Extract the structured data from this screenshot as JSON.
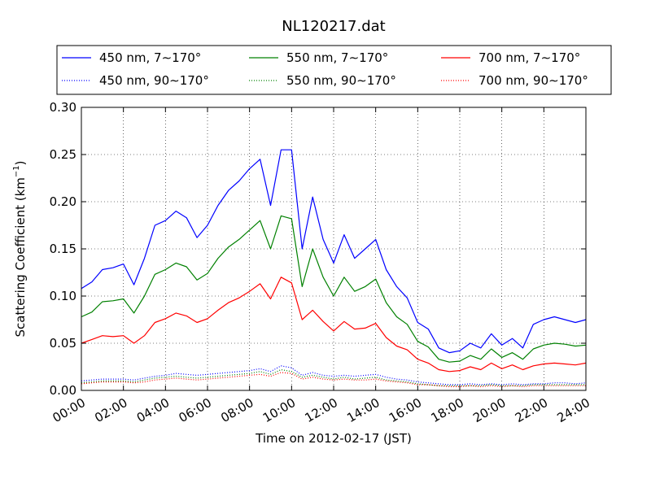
{
  "chart_data": {
    "type": "line",
    "title": "NL120217.dat",
    "xlabel": "Time on 2012-02-17 (JST)",
    "ylabel": "Scattering Coefficient (km",
    "ylabel_exp": "−1",
    "ylabel_close": ")",
    "xlim": [
      0,
      24
    ],
    "ylim": [
      0,
      0.3
    ],
    "grid": true,
    "legend_position": "top",
    "x_ticks": [
      {
        "v": 0,
        "label": "00:00"
      },
      {
        "v": 2,
        "label": "02:00"
      },
      {
        "v": 4,
        "label": "04:00"
      },
      {
        "v": 6,
        "label": "06:00"
      },
      {
        "v": 8,
        "label": "08:00"
      },
      {
        "v": 10,
        "label": "10:00"
      },
      {
        "v": 12,
        "label": "12:00"
      },
      {
        "v": 14,
        "label": "14:00"
      },
      {
        "v": 16,
        "label": "16:00"
      },
      {
        "v": 18,
        "label": "18:00"
      },
      {
        "v": 20,
        "label": "20:00"
      },
      {
        "v": 22,
        "label": "22:00"
      },
      {
        "v": 24,
        "label": "24:00"
      }
    ],
    "y_ticks": [
      {
        "v": 0.0,
        "label": "0.00"
      },
      {
        "v": 0.05,
        "label": "0.05"
      },
      {
        "v": 0.1,
        "label": "0.10"
      },
      {
        "v": 0.15,
        "label": "0.15"
      },
      {
        "v": 0.2,
        "label": "0.20"
      },
      {
        "v": 0.25,
        "label": "0.25"
      },
      {
        "v": 0.3,
        "label": "0.30"
      }
    ],
    "x": [
      0,
      0.5,
      1,
      1.5,
      2,
      2.5,
      3,
      3.5,
      4,
      4.5,
      5,
      5.5,
      6,
      6.5,
      7,
      7.5,
      8,
      8.5,
      9,
      9.5,
      10,
      10.5,
      11,
      11.5,
      12,
      12.5,
      13,
      13.5,
      14,
      14.5,
      15,
      15.5,
      16,
      16.5,
      17,
      17.5,
      18,
      18.5,
      19,
      19.5,
      20,
      20.5,
      21,
      21.5,
      22,
      22.5,
      23,
      23.5,
      24
    ],
    "series": [
      {
        "name": "450 nm, 7∼170°",
        "color": "#0000ff",
        "style": "solid",
        "values": [
          0.108,
          0.115,
          0.128,
          0.13,
          0.134,
          0.112,
          0.14,
          0.175,
          0.18,
          0.19,
          0.183,
          0.162,
          0.175,
          0.196,
          0.212,
          0.222,
          0.235,
          0.245,
          0.196,
          0.255,
          0.255,
          0.15,
          0.205,
          0.16,
          0.135,
          0.165,
          0.14,
          0.15,
          0.16,
          0.128,
          0.11,
          0.098,
          0.072,
          0.065,
          0.045,
          0.04,
          0.042,
          0.05,
          0.045,
          0.06,
          0.048,
          0.055,
          0.045,
          0.07,
          0.075,
          0.078,
          0.075,
          0.072,
          0.075
        ]
      },
      {
        "name": "550 nm, 7∼170°",
        "color": "#008000",
        "style": "solid",
        "values": [
          0.078,
          0.083,
          0.094,
          0.095,
          0.097,
          0.082,
          0.1,
          0.123,
          0.128,
          0.135,
          0.131,
          0.117,
          0.124,
          0.14,
          0.152,
          0.16,
          0.17,
          0.18,
          0.15,
          0.185,
          0.182,
          0.11,
          0.15,
          0.12,
          0.1,
          0.12,
          0.105,
          0.11,
          0.118,
          0.093,
          0.078,
          0.07,
          0.052,
          0.046,
          0.033,
          0.03,
          0.031,
          0.037,
          0.033,
          0.044,
          0.035,
          0.04,
          0.033,
          0.044,
          0.048,
          0.05,
          0.049,
          0.047,
          0.048
        ]
      },
      {
        "name": "700 nm, 7∼170°",
        "color": "#ff0000",
        "style": "solid",
        "values": [
          0.05,
          0.054,
          0.058,
          0.057,
          0.058,
          0.05,
          0.058,
          0.072,
          0.076,
          0.082,
          0.079,
          0.072,
          0.076,
          0.085,
          0.093,
          0.098,
          0.105,
          0.113,
          0.097,
          0.12,
          0.114,
          0.075,
          0.085,
          0.073,
          0.063,
          0.073,
          0.065,
          0.066,
          0.071,
          0.056,
          0.047,
          0.043,
          0.033,
          0.029,
          0.022,
          0.02,
          0.021,
          0.025,
          0.022,
          0.029,
          0.023,
          0.027,
          0.022,
          0.026,
          0.028,
          0.029,
          0.028,
          0.027,
          0.029
        ]
      },
      {
        "name": "450 nm, 90∼170°",
        "color": "#0000ff",
        "style": "dotted",
        "values": [
          0.01,
          0.011,
          0.012,
          0.012,
          0.012,
          0.011,
          0.013,
          0.015,
          0.016,
          0.018,
          0.017,
          0.016,
          0.017,
          0.018,
          0.019,
          0.02,
          0.021,
          0.023,
          0.02,
          0.026,
          0.024,
          0.016,
          0.019,
          0.016,
          0.015,
          0.016,
          0.015,
          0.016,
          0.017,
          0.014,
          0.012,
          0.011,
          0.009,
          0.008,
          0.007,
          0.006,
          0.006,
          0.007,
          0.006,
          0.007,
          0.006,
          0.007,
          0.006,
          0.007,
          0.007,
          0.008,
          0.008,
          0.007,
          0.008
        ]
      },
      {
        "name": "550 nm, 90∼170°",
        "color": "#008000",
        "style": "dotted",
        "values": [
          0.008,
          0.009,
          0.01,
          0.01,
          0.01,
          0.009,
          0.011,
          0.013,
          0.014,
          0.015,
          0.014,
          0.013,
          0.014,
          0.015,
          0.016,
          0.017,
          0.018,
          0.02,
          0.017,
          0.022,
          0.02,
          0.014,
          0.016,
          0.014,
          0.012,
          0.014,
          0.012,
          0.013,
          0.014,
          0.011,
          0.01,
          0.009,
          0.007,
          0.006,
          0.005,
          0.005,
          0.005,
          0.005,
          0.005,
          0.006,
          0.005,
          0.005,
          0.005,
          0.006,
          0.006,
          0.006,
          0.006,
          0.006,
          0.006
        ]
      },
      {
        "name": "700 nm, 90∼170°",
        "color": "#ff0000",
        "style": "dotted",
        "values": [
          0.007,
          0.008,
          0.009,
          0.009,
          0.009,
          0.008,
          0.009,
          0.011,
          0.012,
          0.013,
          0.012,
          0.011,
          0.012,
          0.013,
          0.014,
          0.015,
          0.016,
          0.017,
          0.015,
          0.019,
          0.018,
          0.012,
          0.014,
          0.012,
          0.011,
          0.012,
          0.011,
          0.011,
          0.012,
          0.01,
          0.009,
          0.008,
          0.006,
          0.006,
          0.005,
          0.004,
          0.004,
          0.005,
          0.004,
          0.005,
          0.004,
          0.005,
          0.004,
          0.005,
          0.005,
          0.005,
          0.005,
          0.005,
          0.005
        ]
      }
    ]
  }
}
